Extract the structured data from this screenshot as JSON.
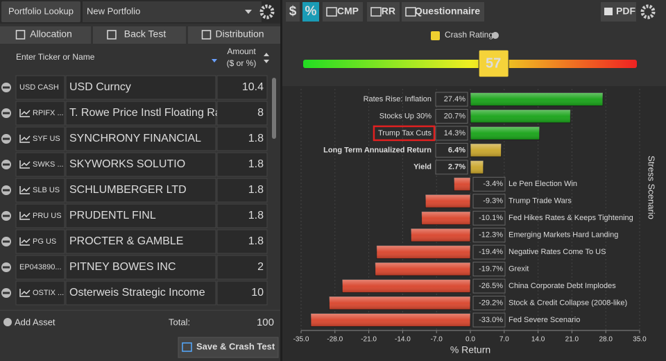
{
  "left_panel": {
    "lookup_button": "Portfolio Lookup",
    "portfolio_name": "New Portfolio",
    "tabs": [
      "Allocation",
      "Back Test",
      "Distribution"
    ],
    "ticker_header": "Enter Ticker or Name",
    "amount_header": [
      "Amount",
      "($ or %)"
    ],
    "assets": [
      {
        "ticker": "USD CASH",
        "name": "USD Curncy",
        "amount": 10.4,
        "chart_icon": false
      },
      {
        "ticker": "RPIFX ...",
        "name": "T. Rowe Price Instl Floating Ra",
        "amount": 8,
        "chart_icon": true
      },
      {
        "ticker": "SYF US",
        "name": "SYNCHRONY FINANCIAL",
        "amount": 1.8,
        "chart_icon": true
      },
      {
        "ticker": "SWKS ...",
        "name": "SKYWORKS SOLUTIO",
        "amount": 1.8,
        "chart_icon": true
      },
      {
        "ticker": "SLB US",
        "name": "SCHLUMBERGER LTD",
        "amount": 1.8,
        "chart_icon": true
      },
      {
        "ticker": "PRU US",
        "name": "PRUDENTL FINL",
        "amount": 1.8,
        "chart_icon": true
      },
      {
        "ticker": "PG US",
        "name": "PROCTER & GAMBLE",
        "amount": 1.8,
        "chart_icon": true
      },
      {
        "ticker": "EP043890...",
        "name": "PITNEY BOWES INC",
        "amount": 2,
        "chart_icon": false
      },
      {
        "ticker": "OSTIX ...",
        "name": "Osterweis Strategic Income",
        "amount": 10,
        "chart_icon": true
      }
    ],
    "add_asset": "Add Asset",
    "total_label": "Total:",
    "total": 100,
    "save_button": "Save & Crash Test"
  },
  "right_panel": {
    "toolbar": [
      "$",
      "%",
      "CMP",
      "RR",
      "Questionnaire"
    ],
    "pdf_button": "PDF",
    "crash_rating_label": "Crash Rating",
    "crash_rating": 57,
    "crash_range": [
      0,
      100
    ]
  },
  "chart_data": {
    "type": "hbar",
    "orientation": "horizontal",
    "categories": [
      "Rates Rise: Inflation",
      "Stocks Up 30%",
      "Trump Tax Cuts",
      "Long Term Annualized Return",
      "Yield",
      "Le Pen Election Win",
      "Trump Trade Wars",
      "Fed Hikes Rates & Keeps Tightening",
      "Emerging Markets Hard Landing",
      "Negative Rates Come To US",
      "Grexit",
      "China Corporate Debt Implodes",
      "Stock & Credit Collapse (2008-like)",
      "Fed Severe Scenario"
    ],
    "values": [
      27.4,
      20.7,
      14.3,
      6.4,
      2.7,
      -3.4,
      -9.3,
      -10.1,
      -12.3,
      -19.4,
      -19.7,
      -26.5,
      -29.2,
      -33.0
    ],
    "value_labels": [
      "27.4%",
      "20.7%",
      "14.3%",
      "6.4%",
      "2.7%",
      "-3.4%",
      "-9.3%",
      "-10.1%",
      "-12.3%",
      "-19.4%",
      "-19.7%",
      "-26.5%",
      "-29.2%",
      "-33.0%"
    ],
    "colors": [
      "#17a317",
      "#17a317",
      "#17a317",
      "#c9a52a",
      "#c9a52a",
      "#d9442b",
      "#d9442b",
      "#d9442b",
      "#d9442b",
      "#d9442b",
      "#d9442b",
      "#d9442b",
      "#d9442b",
      "#d9442b"
    ],
    "bold": [
      3,
      4
    ],
    "highlight": [
      2
    ],
    "xlim": [
      -35,
      35
    ],
    "xticks": [
      {
        "value": -35,
        "label": "-35.0"
      },
      {
        "value": -28,
        "label": "-28.0"
      },
      {
        "value": -21,
        "label": "-21.0"
      },
      {
        "value": -14,
        "label": "-14.0"
      },
      {
        "value": -7,
        "label": "-7.0"
      },
      {
        "value": 0,
        "label": "0.0"
      },
      {
        "value": 7,
        "label": "7.0"
      },
      {
        "value": 14,
        "label": "14.0"
      },
      {
        "value": 21,
        "label": "21.0"
      },
      {
        "value": 28,
        "label": "28.0"
      },
      {
        "value": 35,
        "label": "35.0"
      }
    ],
    "xlabel": "% Return",
    "side_label": "Stress Scenario",
    "grid": true
  }
}
